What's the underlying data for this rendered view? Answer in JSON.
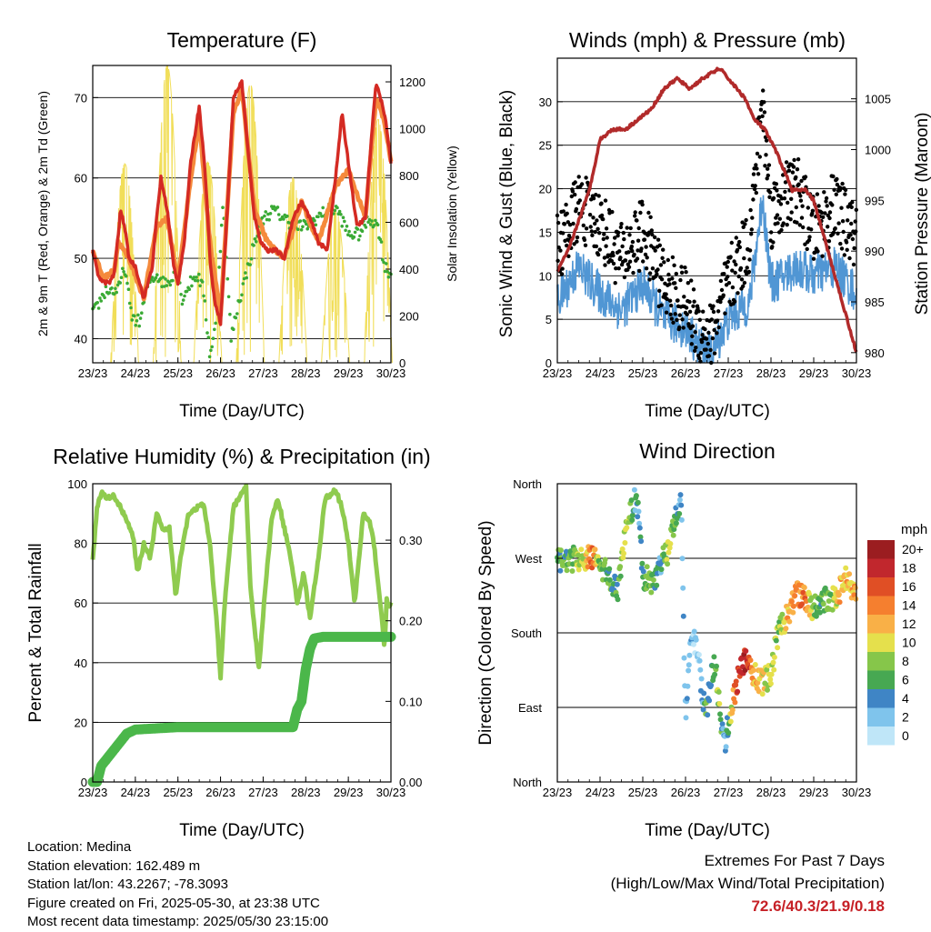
{
  "panels": {
    "temperature": {
      "title": "Temperature (F)",
      "xlabel": "Time (Day/UTC)",
      "ylabel_left": "2m & 9m T (Red, Orange) & 2m Td (Green)",
      "ylabel_right": "Solar Insolation (Yellow)"
    },
    "winds": {
      "title": "Winds (mph) & Pressure (mb)",
      "xlabel": "Time (Day/UTC)",
      "ylabel_left": "Sonic Wind & Gust (Blue, Black)",
      "ylabel_right": "Station Pressure (Maroon)"
    },
    "rh": {
      "title": "Relative Humidity (%) & Precipitation (in)",
      "xlabel": "Time (Day/UTC)",
      "ylabel_left": "Percent & Total Rainfall"
    },
    "wind_direction": {
      "title": "Wind Direction",
      "xlabel": "Time (Day/UTC)",
      "ylabel_left": "Direction (Colored By Speed)",
      "legend_unit": "mph",
      "legend_labels": [
        "20+",
        "18",
        "16",
        "14",
        "12",
        "10",
        "8",
        "6",
        "4",
        "2",
        "0"
      ]
    }
  },
  "chart_data": [
    {
      "type": "line",
      "x_ticks": [
        "23/23",
        "24/23",
        "25/23",
        "26/23",
        "27/23",
        "28/23",
        "29/23",
        "30/23"
      ],
      "y_left_ticks": [
        40,
        50,
        60,
        70
      ],
      "y_left_range": [
        37,
        74
      ],
      "y_right_ticks": [
        0,
        200,
        400,
        600,
        800,
        1000,
        1200
      ],
      "y_right_range": [
        0,
        1270
      ],
      "grid": true,
      "series": [
        {
          "color": "#d42a23",
          "x": [
            0,
            0.12,
            0.25,
            0.4,
            0.5,
            0.6,
            0.65,
            0.75,
            0.85,
            1.0,
            1.2,
            1.4,
            1.5,
            1.6,
            1.75,
            1.9,
            2.0,
            2.15,
            2.3,
            2.5,
            2.65,
            2.75,
            2.85,
            3.0,
            3.15,
            3.3,
            3.5,
            3.65,
            3.8,
            3.95,
            4.1,
            4.3,
            4.5,
            4.7,
            4.9,
            5.1,
            5.3,
            5.5,
            5.7,
            5.85,
            6.0,
            6.2,
            6.4,
            6.5,
            6.65,
            6.8,
            6.85,
            6.9,
            6.95,
            7.0
          ],
          "y": [
            51,
            48,
            47,
            47,
            48,
            53,
            56,
            54,
            50,
            49,
            45,
            49,
            55,
            60,
            56,
            49,
            47,
            52,
            62,
            69,
            60,
            50,
            45,
            42,
            55,
            70,
            72,
            63,
            55,
            52,
            51,
            51,
            50,
            55,
            57,
            55,
            52,
            51,
            60,
            68,
            62,
            54,
            55,
            62,
            72,
            69,
            68,
            66,
            64,
            62
          ]
        },
        {
          "color": "#f58a3c",
          "x": [
            0,
            0.25,
            0.5,
            0.6,
            0.85,
            1.2,
            1.5,
            1.75,
            2.0,
            2.3,
            2.5,
            2.75,
            3.0,
            3.3,
            3.5,
            3.8,
            4.1,
            4.5,
            4.9,
            5.3,
            5.7,
            6.0,
            6.4,
            6.65,
            6.85,
            7.0
          ],
          "y": [
            51,
            47.5,
            48.5,
            52,
            50,
            45,
            54,
            55,
            47,
            60,
            67,
            52,
            43,
            68,
            71,
            56,
            52,
            50,
            57,
            52,
            59,
            61,
            55,
            70,
            67,
            62
          ]
        },
        {
          "color": "#3aaa35",
          "x": [
            0,
            0.3,
            0.6,
            0.75,
            0.9,
            1.1,
            1.3,
            1.5,
            1.65,
            1.8,
            1.95,
            2.1,
            2.3,
            2.45,
            2.6,
            2.75,
            2.9,
            3.05,
            3.25,
            3.4,
            3.6,
            3.8,
            4.0,
            4.25,
            4.5,
            4.75,
            5.0,
            5.25,
            5.5,
            5.75,
            6.0,
            6.25,
            6.5,
            6.7,
            6.85,
            7.0
          ],
          "y": [
            43,
            46,
            46,
            49,
            43,
            42,
            47,
            48,
            47,
            47,
            49,
            45,
            47,
            48,
            46,
            38,
            42,
            57,
            40,
            44,
            48,
            52,
            55,
            56,
            55,
            54,
            54,
            55,
            56,
            56,
            53,
            53,
            55,
            54,
            49,
            48
          ]
        },
        {
          "name_axis": "right",
          "color": "#f1de59",
          "peaks_x": [
            0.75,
            1.75,
            2.7,
            3.7,
            4.7,
            5.7,
            6.7
          ],
          "peaks_y": [
            850,
            1270,
            860,
            1190,
            790,
            660,
            1040
          ]
        }
      ]
    },
    {
      "type": "line",
      "x_ticks": [
        "23/23",
        "24/23",
        "25/23",
        "26/23",
        "27/23",
        "28/23",
        "29/23",
        "30/23"
      ],
      "y_left_ticks": [
        0,
        5,
        10,
        15,
        20,
        25,
        30
      ],
      "y_left_range": [
        0,
        35
      ],
      "y_right_ticks": [
        980,
        985,
        990,
        995,
        1000,
        1005
      ],
      "y_right_range": [
        979,
        1009
      ],
      "grid": true,
      "series": [
        {
          "color": "#b12a2a",
          "x": [
            0,
            0.25,
            0.5,
            0.75,
            1.0,
            1.3,
            1.6,
            1.9,
            2.2,
            2.5,
            2.8,
            3.1,
            3.4,
            3.6,
            3.8,
            4.0,
            4.2,
            4.4,
            4.6,
            4.85,
            5.1,
            5.3,
            5.5,
            5.8,
            6.0,
            6.2,
            6.4,
            6.6,
            6.8,
            7.0
          ],
          "y": [
            988,
            990,
            993,
            996,
            1001,
            1002,
            1002,
            1003,
            1004,
            1006,
            1007,
            1006,
            1007,
            1007.5,
            1008,
            1007,
            1006,
            1005,
            1003,
            1002,
            1000,
            998,
            996,
            996,
            995,
            992,
            989,
            986,
            983,
            980
          ]
        },
        {
          "color": "#5096d4",
          "x": [
            0,
            0.5,
            1.0,
            1.5,
            2.0,
            2.5,
            3.0,
            3.3,
            3.6,
            4.0,
            4.5,
            4.8,
            5.0,
            5.3,
            5.6,
            6.0,
            6.5,
            7.0
          ],
          "y": [
            7,
            11,
            8,
            6,
            9,
            5,
            4,
            2,
            1,
            5,
            7,
            19,
            9,
            10,
            11,
            10,
            11,
            8
          ]
        },
        {
          "color": "#000000",
          "x": [
            0,
            0.5,
            1.0,
            1.5,
            2.0,
            2.5,
            3.0,
            3.3,
            3.6,
            4.0,
            4.5,
            4.8,
            5.0,
            5.3,
            5.6,
            6.0,
            6.5,
            7.0
          ],
          "y": [
            13,
            18,
            16,
            12,
            15,
            9,
            7,
            4,
            3,
            9,
            14,
            30,
            17,
            19,
            20,
            15,
            18,
            14
          ]
        }
      ]
    },
    {
      "type": "line",
      "x_ticks": [
        "23/23",
        "24/23",
        "25/23",
        "26/23",
        "27/23",
        "28/23",
        "29/23",
        "30/23"
      ],
      "y_left_ticks": [
        0,
        20,
        40,
        60,
        80,
        100
      ],
      "y_left_range": [
        0,
        100
      ],
      "y_right_ticks": [
        "0.00",
        "0.10",
        "0.20",
        "0.30"
      ],
      "y_right_range": [
        0,
        0.37
      ],
      "grid": true,
      "series": [
        {
          "color": "#8fcb4f",
          "x": [
            0,
            0.1,
            0.2,
            0.35,
            0.5,
            0.65,
            0.8,
            0.95,
            1.05,
            1.2,
            1.35,
            1.5,
            1.65,
            1.8,
            1.95,
            2.05,
            2.25,
            2.45,
            2.6,
            2.75,
            2.9,
            3.0,
            3.1,
            3.3,
            3.5,
            3.6,
            3.7,
            3.9,
            4.05,
            4.2,
            4.35,
            4.5,
            4.65,
            4.8,
            4.95,
            5.1,
            5.3,
            5.45,
            5.55,
            5.7,
            5.85,
            6.0,
            6.15,
            6.35,
            6.5,
            6.6,
            6.75,
            6.85,
            6.9,
            6.95,
            7.0
          ],
          "y": [
            74,
            92,
            97,
            95,
            96,
            92,
            88,
            82,
            70,
            80,
            75,
            90,
            84,
            85,
            62,
            75,
            90,
            92,
            93,
            80,
            55,
            35,
            60,
            92,
            97,
            99,
            65,
            38,
            65,
            88,
            95,
            85,
            75,
            60,
            70,
            55,
            75,
            95,
            96,
            98,
            92,
            80,
            60,
            90,
            87,
            80,
            60,
            45,
            62,
            58,
            60
          ]
        },
        {
          "color": "#4bb74a",
          "axis": "right",
          "x": [
            0,
            0.1,
            0.2,
            0.5,
            0.8,
            1.0,
            2.0,
            3.0,
            4.0,
            4.7,
            4.8,
            4.9,
            5.0,
            5.1,
            5.2,
            5.4,
            6.0,
            7.0
          ],
          "y": [
            0,
            0.0,
            0.02,
            0.04,
            0.06,
            0.065,
            0.068,
            0.068,
            0.068,
            0.068,
            0.09,
            0.1,
            0.14,
            0.165,
            0.178,
            0.18,
            0.18,
            0.18
          ]
        }
      ]
    },
    {
      "type": "scatter",
      "x_ticks": [
        "23/23",
        "24/23",
        "25/23",
        "26/23",
        "27/23",
        "28/23",
        "29/23",
        "30/23"
      ],
      "y_ticks": [
        "North",
        "East",
        "South",
        "West",
        "North"
      ],
      "y_range": [
        0,
        360
      ],
      "grid": true,
      "series": [
        {
          "colorscale": [
            "#bfe6f8",
            "#7fc4ec",
            "#3f85c5",
            "#47a852",
            "#86c64a",
            "#e5e04c",
            "#f9b047",
            "#f57f2f",
            "#e04f25",
            "#c1272d",
            "#9b1d20"
          ],
          "x": [
            0,
            0.3,
            0.6,
            0.8,
            1.0,
            1.2,
            1.4,
            1.6,
            1.8,
            1.9,
            2.0,
            2.2,
            2.4,
            2.6,
            2.8,
            2.9,
            3.0,
            3.1,
            3.2,
            3.3,
            3.4,
            3.5,
            3.6,
            3.7,
            3.8,
            3.9,
            4.0,
            4.2,
            4.4,
            4.6,
            4.8,
            5.0,
            5.2,
            5.4,
            5.6,
            5.8,
            6.0,
            6.2,
            6.4,
            6.6,
            6.8,
            7.0
          ],
          "y": [
            265,
            270,
            265,
            272,
            260,
            250,
            230,
            300,
            340,
            330,
            250,
            240,
            260,
            280,
            330,
            340,
            80,
            160,
            170,
            150,
            100,
            90,
            130,
            140,
            90,
            40,
            70,
            120,
            150,
            130,
            120,
            130,
            190,
            200,
            230,
            220,
            210,
            220,
            220,
            230,
            250,
            220
          ],
          "speed": [
            6,
            7,
            9,
            15,
            7,
            6,
            5,
            10,
            5,
            4,
            6,
            8,
            4,
            10,
            5,
            4,
            3,
            2,
            1,
            1,
            3,
            6,
            4,
            7,
            9,
            3,
            6,
            17,
            18,
            13,
            10,
            9,
            8,
            12,
            14,
            14,
            7,
            6,
            8,
            12,
            11,
            13
          ]
        }
      ]
    }
  ],
  "info": {
    "location": "Location: Medina",
    "elevation": "Station elevation: 162.489 m",
    "latlon": "Station lat/lon: 43.2267; -78.3093",
    "created": "Figure created on Fri, 2025-05-30, at 23:38 UTC",
    "recent": "Most recent data timestamp: 2025/05/30 23:15:00"
  },
  "extremes": {
    "title": "Extremes For Past 7 Days",
    "subtitle": "(High/Low/Max Wind/Total Precipitation)",
    "values": "72.6/40.3/21.9/0.18"
  }
}
